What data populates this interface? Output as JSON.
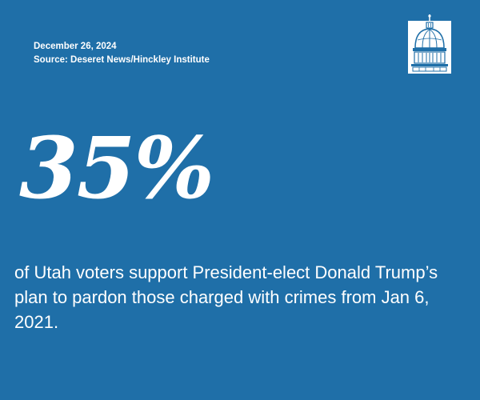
{
  "header": {
    "date": "December 26, 2024",
    "source": "Source: Deseret News/Hinckley Institute"
  },
  "logo": {
    "icon": "capitol-dome-icon"
  },
  "stat": {
    "value": "35%"
  },
  "statement": {
    "text": "of Utah voters support President-elect Donald Trump’s plan to pardon those charged with crimes from Jan 6, 2021."
  },
  "colors": {
    "background": "#1f6fa8",
    "text": "#ffffff"
  }
}
